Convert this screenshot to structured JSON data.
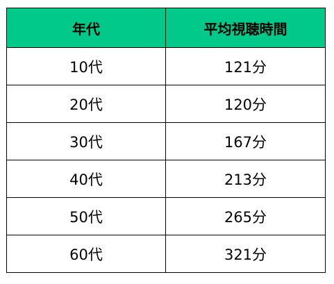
{
  "table": {
    "header_color": "#00c98a",
    "headers": [
      "年代",
      "平均視聴時間"
    ],
    "rows": [
      [
        "10代",
        "121分"
      ],
      [
        "20代",
        "120分"
      ],
      [
        "30代",
        "167分"
      ],
      [
        "40代",
        "213分"
      ],
      [
        "50代",
        "265分"
      ],
      [
        "60代",
        "321分"
      ]
    ]
  }
}
